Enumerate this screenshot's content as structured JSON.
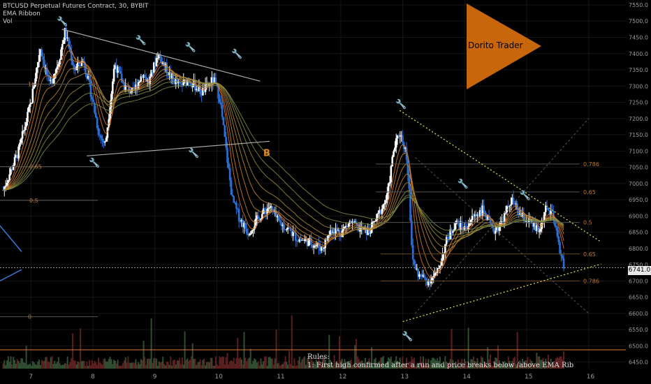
{
  "legend": {
    "title": "BTCUSD Perpetual Futures Contract, 30, BYBIT",
    "indicator1": "EMA Ribbon",
    "indicator2": "Vol"
  },
  "watermark": "Dorito Trader",
  "rules": {
    "heading": "Rules:",
    "line1": "1: First high confirmed after a run and price breaks below /above EMA Rib"
  },
  "last_price": "6741.0",
  "chart_data": {
    "type": "line",
    "title": "BTCUSD Perpetual Futures Contract, 30, BYBIT",
    "x_ticks": [
      "7",
      "8",
      "9",
      "10",
      "11",
      "12",
      "13",
      "14",
      "15",
      "16"
    ],
    "y_ticks": [
      6450,
      6500,
      6550,
      6600,
      6650,
      6700,
      6750,
      6800,
      6850,
      6900,
      6950,
      7000,
      7050,
      7100,
      7150,
      7200,
      7250,
      7300,
      7350,
      7400,
      7450,
      7500,
      7550
    ],
    "ylim": [
      6430,
      7565
    ],
    "xlim": [
      6.5,
      16.6
    ],
    "price_path": {
      "x": [
        6.55,
        6.8,
        7.0,
        7.15,
        7.3,
        7.45,
        7.55,
        7.7,
        7.85,
        8.0,
        8.1,
        8.2,
        8.35,
        8.5,
        8.65,
        8.8,
        8.9,
        9.05,
        9.25,
        9.4,
        9.55,
        9.75,
        9.95,
        10.05,
        10.15,
        10.25,
        10.35,
        10.5,
        10.7,
        10.85,
        11.0,
        11.15,
        11.3,
        11.5,
        11.7,
        11.85,
        12.0,
        12.15,
        12.3,
        12.45,
        12.6,
        12.75,
        12.85,
        12.95,
        13.05,
        13.1,
        13.15,
        13.25,
        13.4,
        13.55,
        13.7,
        13.85,
        14.0,
        14.15,
        14.3,
        14.45,
        14.6,
        14.75,
        14.9,
        15.05,
        15.2,
        15.3,
        15.4,
        15.5,
        15.6
      ],
      "y": [
        6980,
        7100,
        7250,
        7420,
        7300,
        7380,
        7470,
        7350,
        7380,
        7250,
        7150,
        7120,
        7370,
        7300,
        7280,
        7340,
        7310,
        7400,
        7330,
        7300,
        7320,
        7280,
        7320,
        7260,
        7100,
        6950,
        6900,
        6850,
        6900,
        6930,
        6880,
        6860,
        6830,
        6820,
        6800,
        6860,
        6850,
        6880,
        6860,
        6850,
        6900,
        6960,
        7100,
        7160,
        7100,
        7000,
        6770,
        6720,
        6700,
        6720,
        6820,
        6880,
        6860,
        6900,
        6920,
        6850,
        6880,
        6950,
        6900,
        6880,
        6850,
        6920,
        6910,
        6830,
        6741
      ]
    },
    "horizontal_levels": [
      {
        "price": 7306,
        "label": "1"
      },
      {
        "price": 7052,
        "label": "0.65"
      },
      {
        "price": 6948,
        "label": "0.5"
      },
      {
        "price": 6590,
        "label": "0"
      },
      {
        "price": 7060,
        "label": "0.786"
      },
      {
        "price": 6974,
        "label": "0.65"
      },
      {
        "price": 6880,
        "label": "0.5"
      },
      {
        "price": 6783,
        "label": "0.65"
      },
      {
        "price": 6700,
        "label": "0.786"
      }
    ],
    "annotation_marker": "B",
    "current_price": 6741.0
  }
}
